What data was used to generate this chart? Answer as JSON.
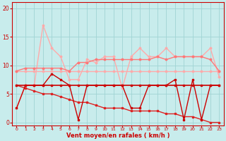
{
  "x": [
    0,
    1,
    2,
    3,
    4,
    5,
    6,
    7,
    8,
    9,
    10,
    11,
    12,
    13,
    14,
    15,
    16,
    17,
    18,
    19,
    20,
    21,
    22,
    23
  ],
  "line_flat_lightpink": [
    9.0,
    9.0,
    9.0,
    9.0,
    9.0,
    9.0,
    9.0,
    9.0,
    9.0,
    9.0,
    9.0,
    9.0,
    9.0,
    9.0,
    9.0,
    9.0,
    9.0,
    9.0,
    9.0,
    9.0,
    9.0,
    9.0,
    9.0,
    9.0
  ],
  "line_jagged_lightpink": [
    2.5,
    6.5,
    6.5,
    17.0,
    13.0,
    11.5,
    7.5,
    7.5,
    11.0,
    10.5,
    11.5,
    11.5,
    6.0,
    11.5,
    13.0,
    11.5,
    11.5,
    13.0,
    11.5,
    11.5,
    11.5,
    11.5,
    13.0,
    8.0
  ],
  "line_medium_pink": [
    9.0,
    9.5,
    9.5,
    9.5,
    9.5,
    9.5,
    9.0,
    10.5,
    10.5,
    11.0,
    11.0,
    11.0,
    11.0,
    11.0,
    11.0,
    11.0,
    11.5,
    11.0,
    11.5,
    11.5,
    11.5,
    11.5,
    11.0,
    9.0
  ],
  "line_flat_darkred": [
    6.5,
    6.5,
    6.5,
    6.5,
    6.5,
    6.5,
    6.5,
    6.5,
    6.5,
    6.5,
    6.5,
    6.5,
    6.5,
    6.5,
    6.5,
    6.5,
    6.5,
    6.5,
    6.5,
    6.5,
    6.5,
    6.5,
    6.5,
    6.5
  ],
  "line_diagonal_darkred": [
    6.5,
    6.0,
    5.5,
    5.0,
    5.0,
    4.5,
    4.0,
    3.5,
    3.5,
    3.0,
    2.5,
    2.5,
    2.5,
    2.0,
    2.0,
    2.0,
    2.0,
    1.5,
    1.5,
    1.0,
    1.0,
    0.5,
    0.0,
    0.0
  ],
  "line_jagged_darkred": [
    2.5,
    6.5,
    6.5,
    6.5,
    8.5,
    7.5,
    6.5,
    0.5,
    6.5,
    6.5,
    6.5,
    6.5,
    6.5,
    2.5,
    2.5,
    6.5,
    6.5,
    6.5,
    7.5,
    0.5,
    7.5,
    0.5,
    6.5,
    6.5
  ],
  "bg_color": "#c8ecec",
  "grid_color": "#a0d4d4",
  "color_lightpink": "#ffaaaa",
  "color_mediumpink": "#ff7777",
  "color_darkred": "#cc0000",
  "color_diagred": "#dd2222",
  "xlabel": "Vent moyen/en rafales ( km/h )",
  "ylim": [
    -0.5,
    21
  ],
  "xlim": [
    -0.5,
    23.5
  ],
  "yticks": [
    0,
    5,
    10,
    15,
    20
  ],
  "xticks": [
    0,
    1,
    2,
    3,
    4,
    5,
    6,
    7,
    8,
    9,
    10,
    11,
    12,
    13,
    14,
    15,
    16,
    17,
    18,
    19,
    20,
    21,
    22,
    23
  ]
}
